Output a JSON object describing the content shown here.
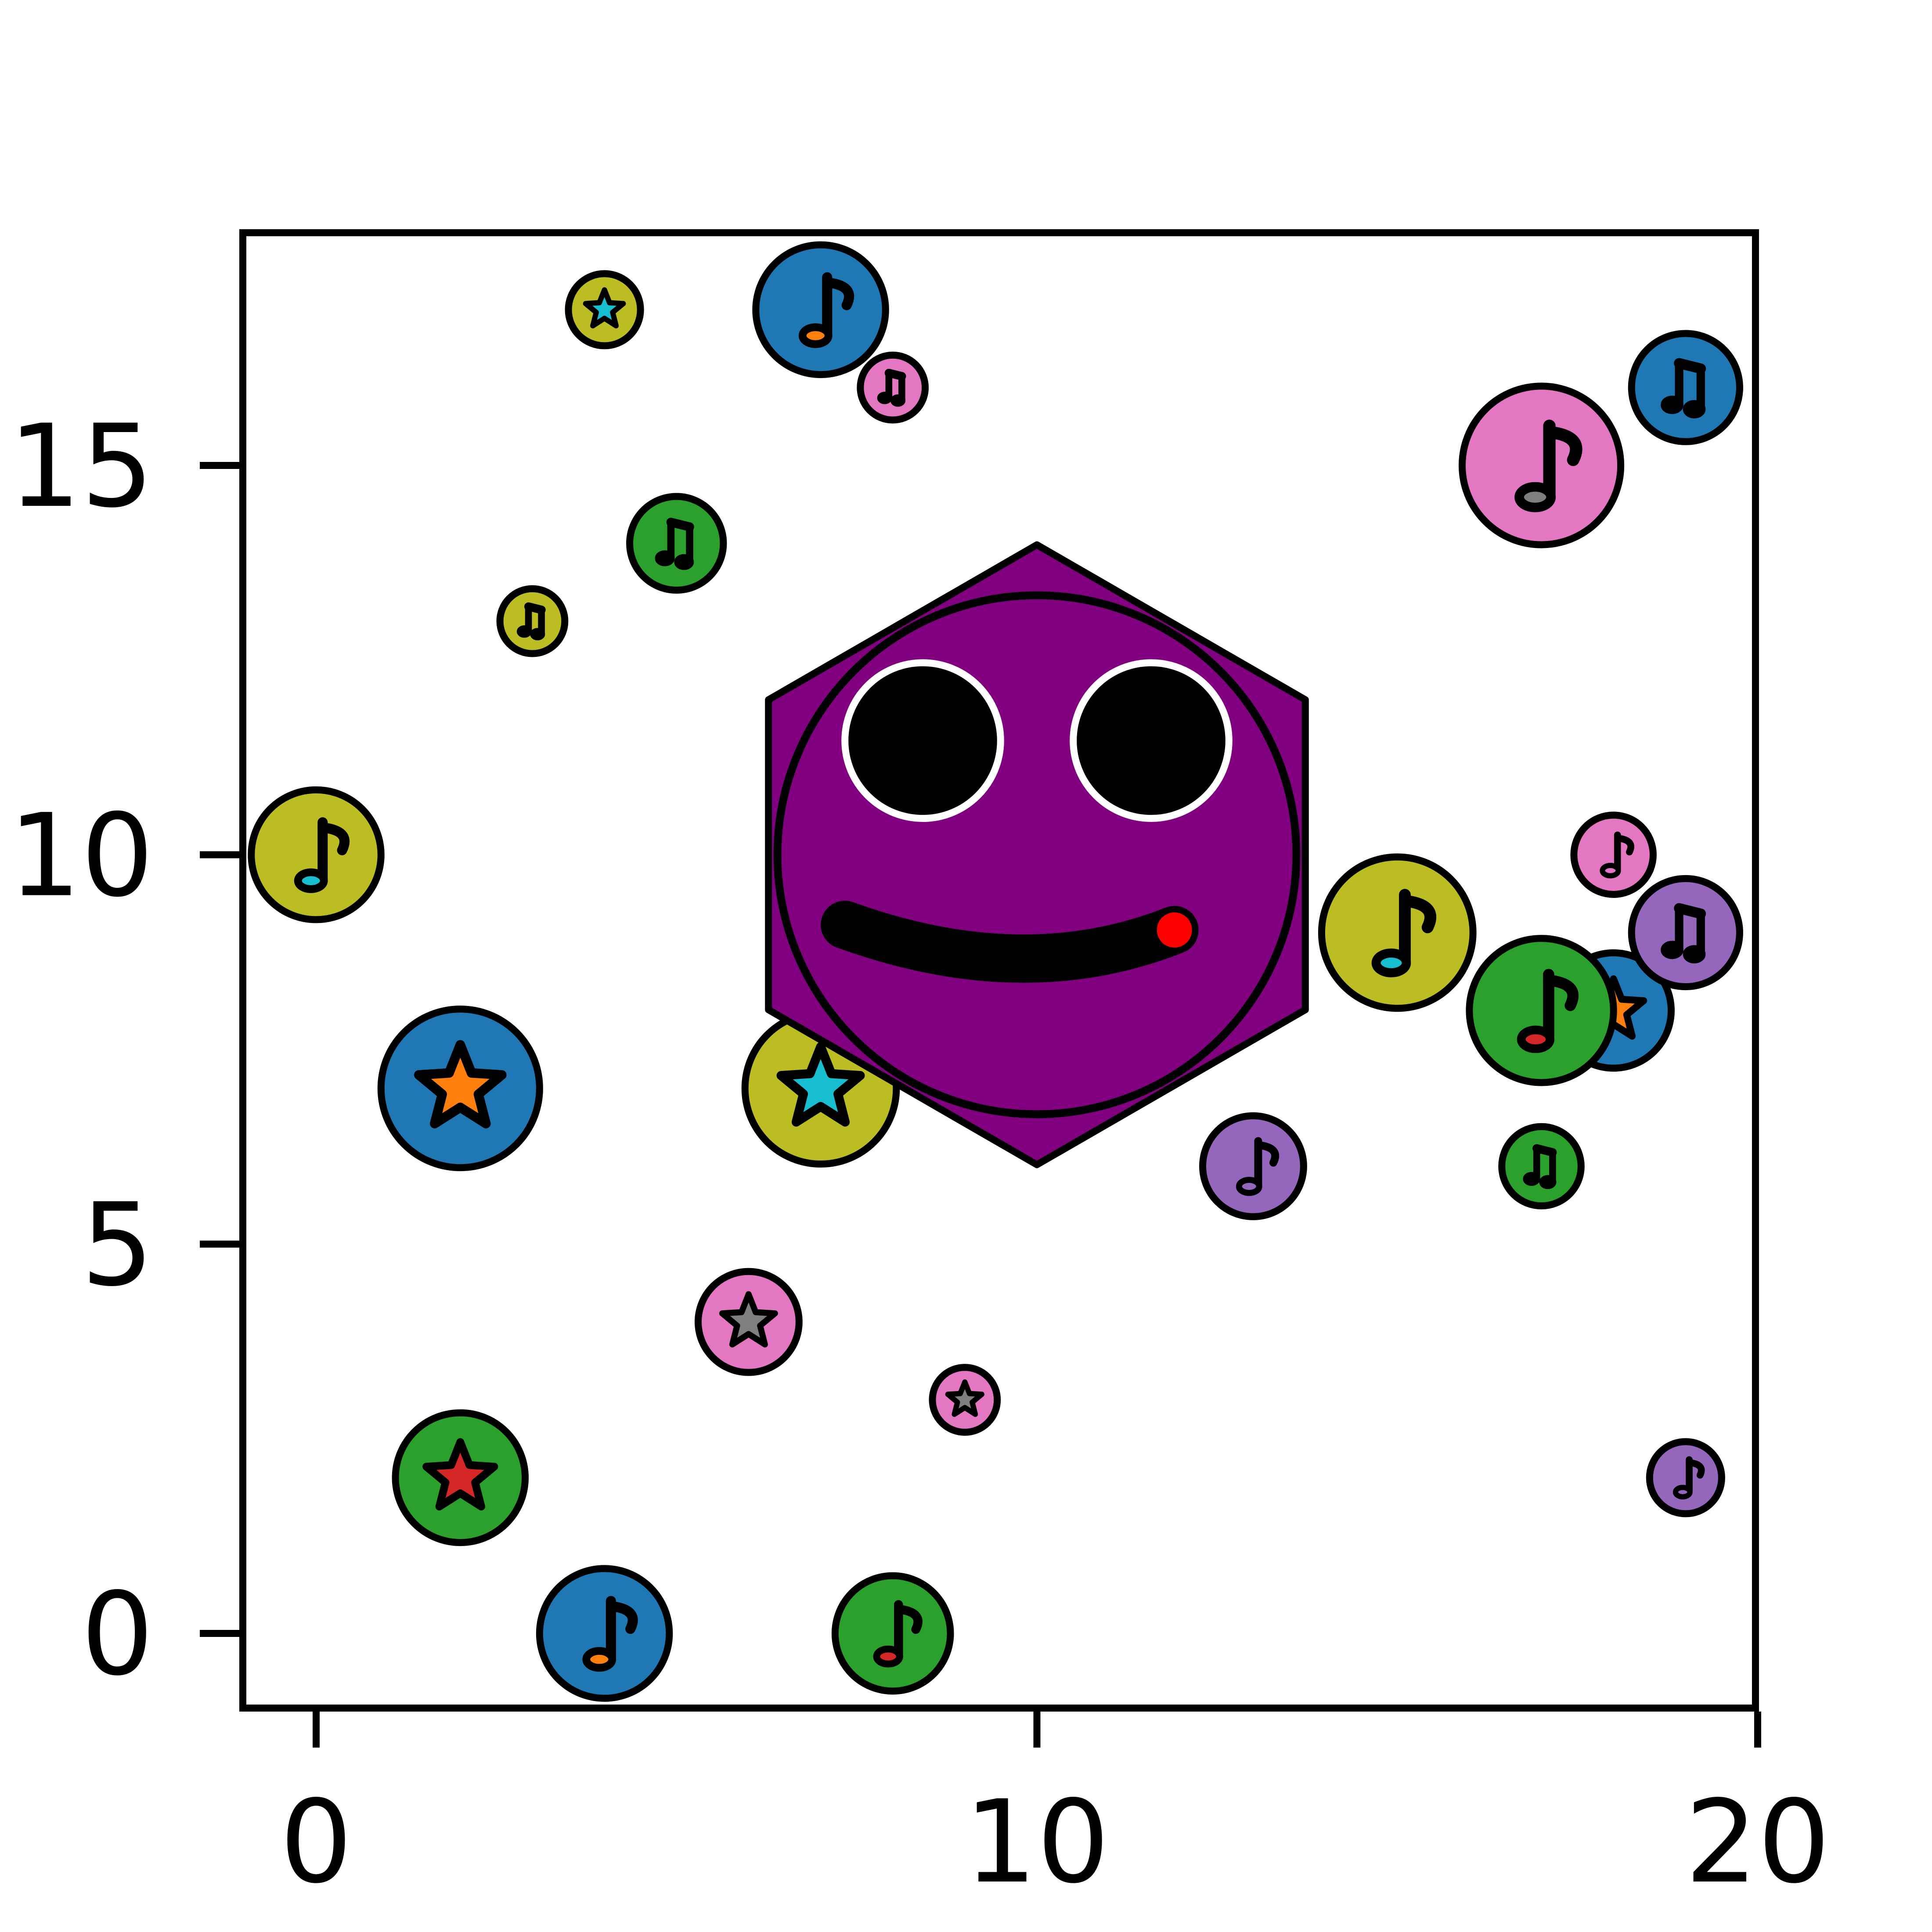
{
  "chart_data": {
    "type": "scatter",
    "title": "",
    "xlabel": "",
    "ylabel": "",
    "xlim": [
      -1,
      20
    ],
    "ylim": [
      -1,
      18
    ],
    "xticks": [
      0,
      10,
      20
    ],
    "yticks": [
      0,
      5,
      10,
      15
    ],
    "xtick_labels": [
      "0",
      "10",
      "20"
    ],
    "ytick_labels": [
      "0",
      "5",
      "10",
      "15"
    ],
    "grid": false,
    "legend": "none",
    "points": [
      {
        "x": 0,
        "y": 10,
        "r": 0.9,
        "color": "#bcbd22",
        "marker": "note",
        "accent": "#17becf"
      },
      {
        "x": 2,
        "y": 7,
        "r": 1.1,
        "color": "#1f77b4",
        "marker": "star",
        "accent": "#ff7f0e"
      },
      {
        "x": 2,
        "y": 2,
        "r": 0.9,
        "color": "#2ca02c",
        "marker": "star",
        "accent": "#d62728"
      },
      {
        "x": 3,
        "y": 13,
        "r": 0.45,
        "color": "#bcbd22",
        "marker": "double-note",
        "accent": "#bcbd22"
      },
      {
        "x": 4,
        "y": 17,
        "r": 0.5,
        "color": "#bcbd22",
        "marker": "star",
        "accent": "#17becf"
      },
      {
        "x": 4,
        "y": 0,
        "r": 0.9,
        "color": "#1f77b4",
        "marker": "note",
        "accent": "#ff7f0e"
      },
      {
        "x": 5,
        "y": 14,
        "r": 0.65,
        "color": "#2ca02c",
        "marker": "double-note",
        "accent": "#2ca02c"
      },
      {
        "x": 6,
        "y": 4,
        "r": 0.7,
        "color": "#e377c2",
        "marker": "star",
        "accent": "#7f7f7f"
      },
      {
        "x": 7,
        "y": 17,
        "r": 0.9,
        "color": "#1f77b4",
        "marker": "note",
        "accent": "#ff7f0e"
      },
      {
        "x": 7,
        "y": 7,
        "r": 1.05,
        "color": "#bcbd22",
        "marker": "star",
        "accent": "#17becf"
      },
      {
        "x": 8,
        "y": 16,
        "r": 0.45,
        "color": "#e377c2",
        "marker": "double-note",
        "accent": "#e377c2"
      },
      {
        "x": 8,
        "y": 0,
        "r": 0.8,
        "color": "#2ca02c",
        "marker": "note",
        "accent": "#d62728"
      },
      {
        "x": 9,
        "y": 3,
        "r": 0.45,
        "color": "#e377c2",
        "marker": "star",
        "accent": "#7f7f7f"
      },
      {
        "x": 13,
        "y": 6,
        "r": 0.7,
        "color": "#9467bd",
        "marker": "note",
        "accent": "#9467bd"
      },
      {
        "x": 15,
        "y": 9,
        "r": 1.05,
        "color": "#bcbd22",
        "marker": "note",
        "accent": "#17becf"
      },
      {
        "x": 17,
        "y": 15,
        "r": 1.1,
        "color": "#e377c2",
        "marker": "note",
        "accent": "#7f7f7f"
      },
      {
        "x": 17,
        "y": 6,
        "r": 0.55,
        "color": "#2ca02c",
        "marker": "double-note",
        "accent": "#2ca02c"
      },
      {
        "x": 18,
        "y": 8,
        "r": 0.8,
        "color": "#1f77b4",
        "marker": "star",
        "accent": "#ff7f0e"
      },
      {
        "x": 17,
        "y": 8,
        "r": 1.0,
        "color": "#2ca02c",
        "marker": "note",
        "accent": "#d62728"
      },
      {
        "x": 18,
        "y": 10,
        "r": 0.55,
        "color": "#e377c2",
        "marker": "note",
        "accent": "#e377c2"
      },
      {
        "x": 19,
        "y": 16,
        "r": 0.75,
        "color": "#1f77b4",
        "marker": "double-note",
        "accent": "#1f77b4"
      },
      {
        "x": 19,
        "y": 9,
        "r": 0.75,
        "color": "#9467bd",
        "marker": "double-note",
        "accent": "#9467bd"
      },
      {
        "x": 19,
        "y": 2,
        "r": 0.5,
        "color": "#9467bd",
        "marker": "note",
        "accent": "#9467bd"
      }
    ],
    "centerpiece": {
      "shape": "hexagon-face",
      "x": 10,
      "y": 10,
      "hex_radius": 4.3,
      "face_radius": 3.6,
      "color": "#800080",
      "eye_color": "#000000",
      "eye_ring_color": "#ffffff",
      "tongue_color": "#ff0000"
    }
  }
}
